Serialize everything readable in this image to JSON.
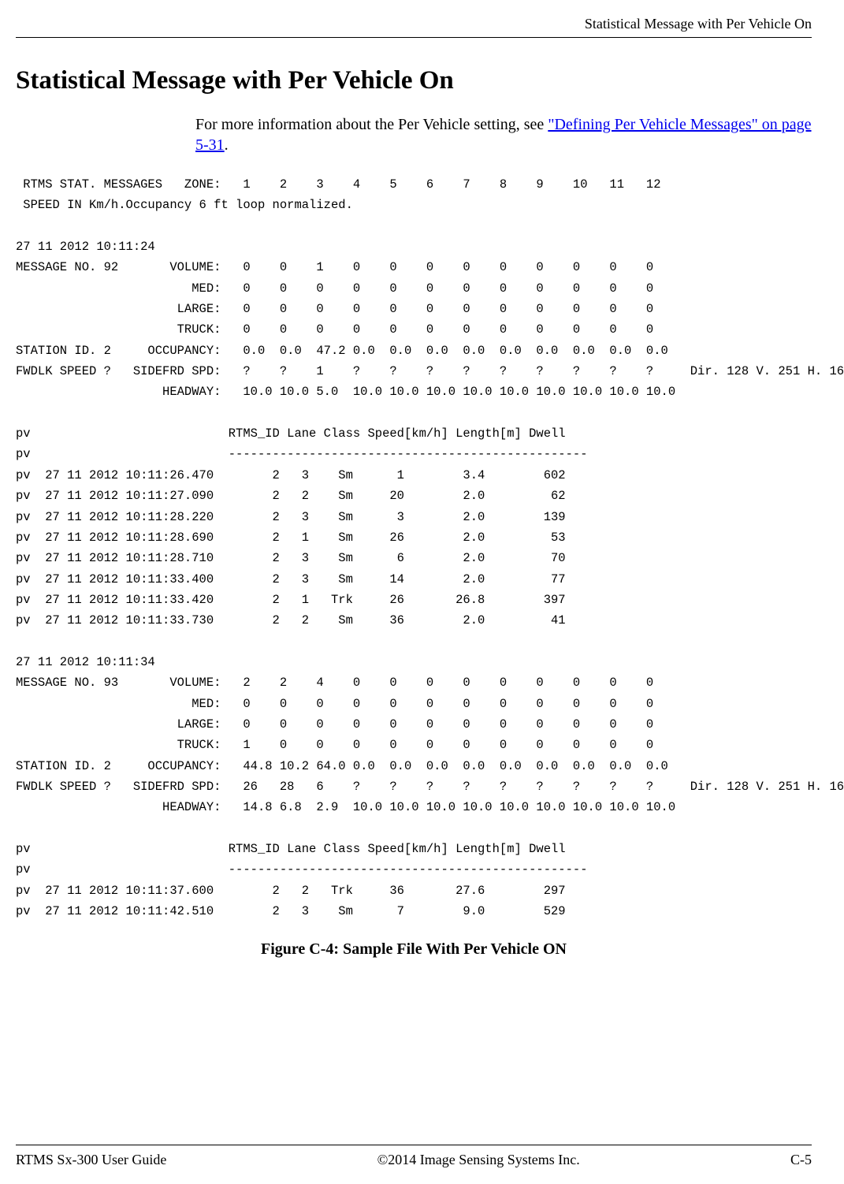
{
  "header": {
    "top_title": "Statistical Message with Per Vehicle On"
  },
  "main": {
    "heading": "Statistical Message with Per Vehicle On",
    "intro_prefix": "For more information about the Per Vehicle setting, see ",
    "intro_link": "\"Defining Per Vehicle Messages\" on page 5-31",
    "intro_suffix": "."
  },
  "pre": {
    "content": " RTMS STAT. MESSAGES   ZONE:   1    2    3    4    5    6    7    8    9    10   11   12\n SPEED IN Km/h.Occupancy 6 ft loop normalized.\n\n27 11 2012 10:11:24\nMESSAGE NO. 92       VOLUME:   0    0    1    0    0    0    0    0    0    0    0    0\n                        MED:   0    0    0    0    0    0    0    0    0    0    0    0\n                      LARGE:   0    0    0    0    0    0    0    0    0    0    0    0\n                      TRUCK:   0    0    0    0    0    0    0    0    0    0    0    0\nSTATION ID. 2     OCCUPANCY:   0.0  0.0  47.2 0.0  0.0  0.0  0.0  0.0  0.0  0.0  0.0  0.0\nFWDLK SPEED ?   SIDEFRD SPD:   ?    ?    1    ?    ?    ?    ?    ?    ?    ?    ?    ?     Dir. 128 V. 251 H. 16\n                    HEADWAY:   10.0 10.0 5.0  10.0 10.0 10.0 10.0 10.0 10.0 10.0 10.0 10.0\n\npv                           RTMS_ID Lane Class Speed[km/h] Length[m] Dwell\npv                           -------------------------------------------------\npv  27 11 2012 10:11:26.470        2   3    Sm      1        3.4        602\npv  27 11 2012 10:11:27.090        2   2    Sm     20        2.0         62\npv  27 11 2012 10:11:28.220        2   3    Sm      3        2.0        139\npv  27 11 2012 10:11:28.690        2   1    Sm     26        2.0         53\npv  27 11 2012 10:11:28.710        2   3    Sm      6        2.0         70\npv  27 11 2012 10:11:33.400        2   3    Sm     14        2.0         77\npv  27 11 2012 10:11:33.420        2   1   Trk     26       26.8        397\npv  27 11 2012 10:11:33.730        2   2    Sm     36        2.0         41\n\n27 11 2012 10:11:34\nMESSAGE NO. 93       VOLUME:   2    2    4    0    0    0    0    0    0    0    0    0\n                        MED:   0    0    0    0    0    0    0    0    0    0    0    0\n                      LARGE:   0    0    0    0    0    0    0    0    0    0    0    0\n                      TRUCK:   1    0    0    0    0    0    0    0    0    0    0    0\nSTATION ID. 2     OCCUPANCY:   44.8 10.2 64.0 0.0  0.0  0.0  0.0  0.0  0.0  0.0  0.0  0.0\nFWDLK SPEED ?   SIDEFRD SPD:   26   28   6    ?    ?    ?    ?    ?    ?    ?    ?    ?     Dir. 128 V. 251 H. 16\n                    HEADWAY:   14.8 6.8  2.9  10.0 10.0 10.0 10.0 10.0 10.0 10.0 10.0 10.0\n\npv                           RTMS_ID Lane Class Speed[km/h] Length[m] Dwell\npv                           -------------------------------------------------\npv  27 11 2012 10:11:37.600        2   2   Trk     36       27.6        297\npv  27 11 2012 10:11:42.510        2   3    Sm      7        9.0        529"
  },
  "figure": {
    "caption": "Figure C-4: Sample File With Per Vehicle ON"
  },
  "footer": {
    "left": "RTMS Sx-300 User Guide",
    "center": "©2014 Image Sensing Systems Inc.",
    "right": "C-5"
  }
}
